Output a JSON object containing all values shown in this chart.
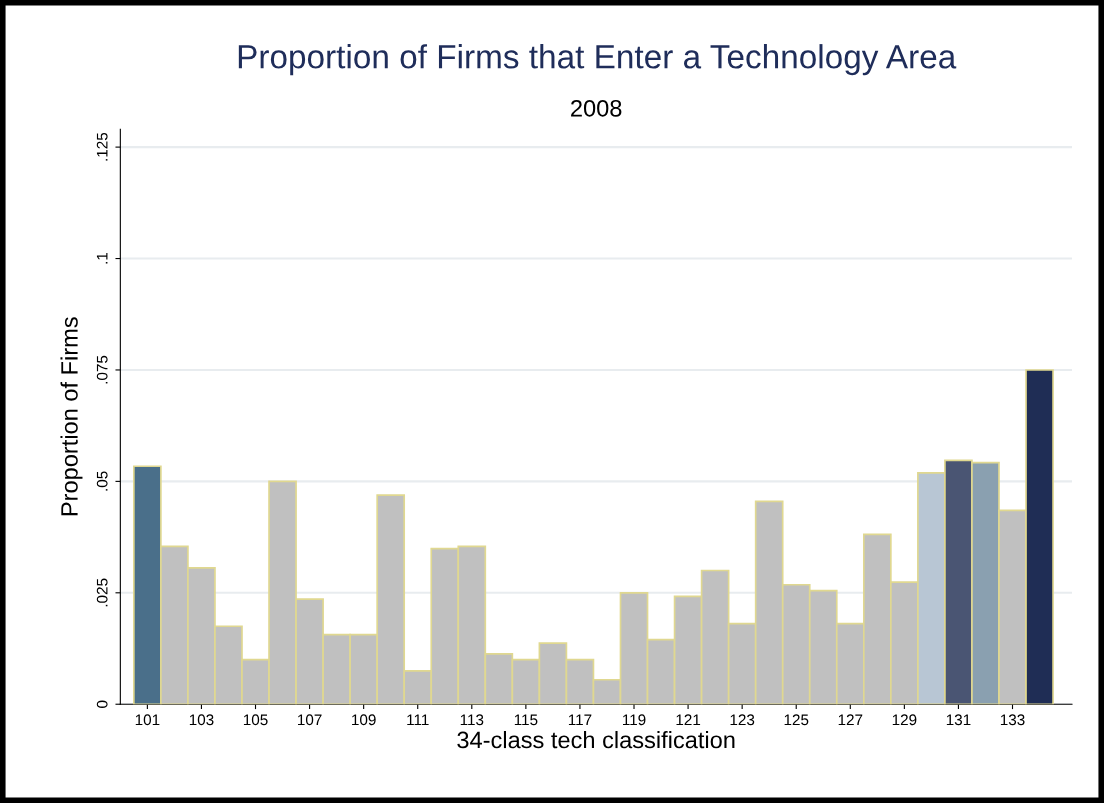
{
  "chart_data": {
    "type": "bar",
    "title": "Proportion of Firms that Enter a Technology Area",
    "subtitle": "2008",
    "xlabel": "34-class tech classification",
    "ylabel": "Proportion of Firms",
    "x": [
      101,
      102,
      103,
      104,
      105,
      106,
      107,
      108,
      109,
      110,
      111,
      112,
      113,
      114,
      115,
      116,
      117,
      118,
      119,
      120,
      121,
      122,
      123,
      124,
      125,
      126,
      127,
      128,
      129,
      130,
      131,
      132,
      133,
      134
    ],
    "values": [
      0.0534,
      0.0354,
      0.0306,
      0.0175,
      0.01,
      0.05,
      0.0236,
      0.0156,
      0.0156,
      0.0469,
      0.0075,
      0.0349,
      0.0354,
      0.0113,
      0.01,
      0.0137,
      0.01,
      0.0055,
      0.025,
      0.0145,
      0.0242,
      0.03,
      0.0181,
      0.0455,
      0.0268,
      0.0255,
      0.0181,
      0.0381,
      0.0274,
      0.0519,
      0.0547,
      0.0542,
      0.0435,
      0.075
    ],
    "colors": [
      "#4a6f8a",
      "#c0c0c0",
      "#c0c0c0",
      "#c0c0c0",
      "#c0c0c0",
      "#c0c0c0",
      "#c0c0c0",
      "#c0c0c0",
      "#c0c0c0",
      "#c0c0c0",
      "#c0c0c0",
      "#c0c0c0",
      "#c0c0c0",
      "#c0c0c0",
      "#c0c0c0",
      "#c0c0c0",
      "#c0c0c0",
      "#c0c0c0",
      "#c0c0c0",
      "#c0c0c0",
      "#c0c0c0",
      "#c0c0c0",
      "#c0c0c0",
      "#c0c0c0",
      "#c0c0c0",
      "#c0c0c0",
      "#c0c0c0",
      "#c0c0c0",
      "#c0c0c0",
      "#b8c6d4",
      "#4a5573",
      "#8aa0b0",
      "#c0c0c0",
      "#1f2d55"
    ],
    "xlim": [
      100,
      135.2
    ],
    "xticks": [
      101,
      103,
      105,
      107,
      109,
      111,
      113,
      115,
      117,
      119,
      121,
      123,
      125,
      127,
      129,
      131,
      133
    ],
    "ylim": [
      0,
      0.129
    ],
    "yticks": [
      {
        "value": 0,
        "label": "0"
      },
      {
        "value": 0.025,
        "label": ".025"
      },
      {
        "value": 0.05,
        "label": ".05"
      },
      {
        "value": 0.075,
        "label": ".075"
      },
      {
        "value": 0.1,
        "label": ".1"
      },
      {
        "value": 0.125,
        "label": ".125"
      }
    ],
    "grid": "y"
  }
}
